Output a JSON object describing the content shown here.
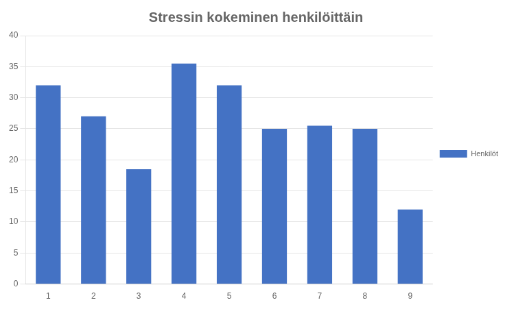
{
  "chart_data": {
    "type": "bar",
    "title": "Stressin kokeminen henkilöittäin",
    "categories": [
      "1",
      "2",
      "3",
      "4",
      "5",
      "6",
      "7",
      "8",
      "9"
    ],
    "series": [
      {
        "name": "Henkilöt",
        "color": "#4472C4",
        "values": [
          32,
          27,
          18.5,
          35.5,
          32,
          25,
          25.5,
          25,
          12
        ]
      }
    ],
    "ylim": [
      0,
      40
    ],
    "yticks": [
      0,
      5,
      10,
      15,
      20,
      25,
      30,
      35,
      40
    ],
    "grid": true,
    "legend": "right"
  }
}
